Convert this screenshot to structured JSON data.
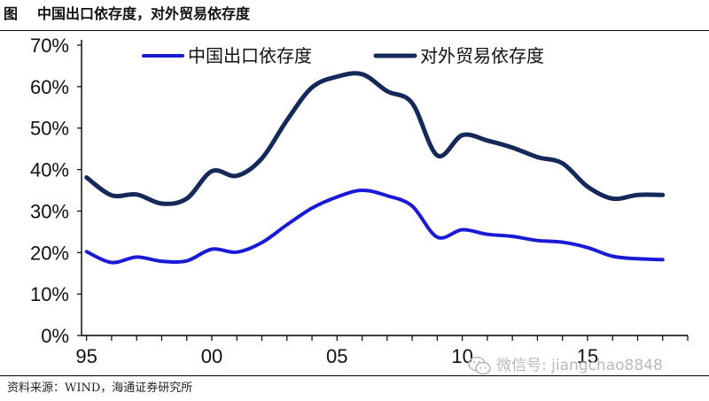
{
  "caption": {
    "label": "图",
    "title": "中国出口依存度，对外贸易依存度"
  },
  "source": "资料来源：WIND，海通证券研究所",
  "watermark": {
    "icon": "wechat-icon",
    "text": "微信号: jiangchao8848"
  },
  "colors": {
    "export_series": "#1a1ad6",
    "trade_series": "#14285a",
    "axis": "#000000"
  },
  "chart_data": {
    "type": "line",
    "title": "中国出口依存度，对外贸易依存度",
    "xlabel": "",
    "ylabel": "",
    "x": [
      1995,
      1996,
      1997,
      1998,
      1999,
      2000,
      2001,
      2002,
      2003,
      2004,
      2005,
      2006,
      2007,
      2008,
      2009,
      2010,
      2011,
      2012,
      2013,
      2014,
      2015,
      2016,
      2017,
      2018
    ],
    "x_ticks": [
      {
        "value": 1995,
        "label": "95"
      },
      {
        "value": 2000,
        "label": "00"
      },
      {
        "value": 2005,
        "label": "05"
      },
      {
        "value": 2010,
        "label": "10"
      },
      {
        "value": 2015,
        "label": "15"
      }
    ],
    "ylim": [
      0,
      70
    ],
    "y_ticks": [
      "0%",
      "10%",
      "20%",
      "30%",
      "40%",
      "50%",
      "60%",
      "70%"
    ],
    "grid": false,
    "legend_position": "top",
    "series": [
      {
        "name": "中国出口依存度",
        "values": [
          20.2,
          17.6,
          18.9,
          17.9,
          18.0,
          20.8,
          20.1,
          22.4,
          26.7,
          30.7,
          33.4,
          35.0,
          33.7,
          31.2,
          23.7,
          25.5,
          24.4,
          23.9,
          22.9,
          22.5,
          21.2,
          19.1,
          18.5,
          18.3
        ]
      },
      {
        "name": "对外贸易依存度",
        "values": [
          38.1,
          33.8,
          34.0,
          31.8,
          33.0,
          39.6,
          38.5,
          42.7,
          51.9,
          59.8,
          62.4,
          63.0,
          58.9,
          56.0,
          43.4,
          48.3,
          47.0,
          45.3,
          43.0,
          41.5,
          35.9,
          33.0,
          33.9,
          33.9
        ]
      }
    ]
  }
}
